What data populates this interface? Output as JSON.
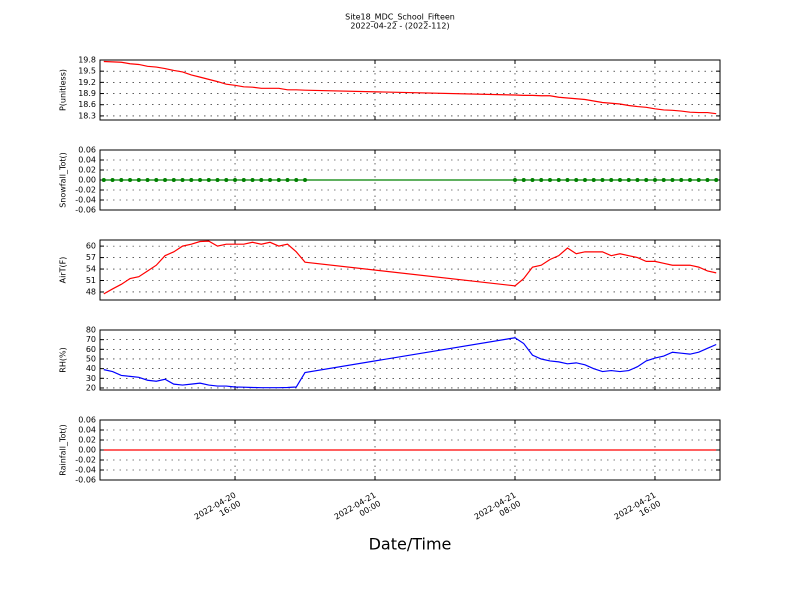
{
  "title": "Site18_MDC_School_Fifteen",
  "subtitle": "2022-04-22 - (2022-112)",
  "xlabel": "Date/Time",
  "chart_data": [
    {
      "type": "line",
      "ylabel": "P(unitless)",
      "color": "#ff0000",
      "markers": false,
      "grid": true,
      "xlim": [
        "2022-04-20 08:17",
        "2022-04-21 19:43"
      ],
      "xticks": [
        "2022-04-20 16:00",
        "2022-04-21 00:00",
        "2022-04-21 08:00",
        "2022-04-21 16:00"
      ],
      "ylim": [
        18.19,
        19.8
      ],
      "yticks": [
        18.3,
        18.6,
        18.9,
        19.2,
        19.5,
        19.8
      ],
      "x": [
        "2022-04-20 08:30",
        "2022-04-20 09:00",
        "2022-04-20 09:30",
        "2022-04-20 10:00",
        "2022-04-20 10:30",
        "2022-04-20 11:00",
        "2022-04-20 11:30",
        "2022-04-20 12:00",
        "2022-04-20 12:30",
        "2022-04-20 13:00",
        "2022-04-20 13:30",
        "2022-04-20 14:00",
        "2022-04-20 14:30",
        "2022-04-20 15:00",
        "2022-04-20 15:30",
        "2022-04-20 16:00",
        "2022-04-20 16:30",
        "2022-04-20 17:00",
        "2022-04-20 17:30",
        "2022-04-20 18:00",
        "2022-04-20 18:30",
        "2022-04-20 19:00",
        "2022-04-20 19:30",
        "2022-04-20 20:00",
        "2022-04-21 08:00",
        "2022-04-21 08:30",
        "2022-04-21 09:00",
        "2022-04-21 09:30",
        "2022-04-21 10:00",
        "2022-04-21 10:30",
        "2022-04-21 11:00",
        "2022-04-21 11:30",
        "2022-04-21 12:00",
        "2022-04-21 12:30",
        "2022-04-21 13:00",
        "2022-04-21 13:30",
        "2022-04-21 14:00",
        "2022-04-21 14:30",
        "2022-04-21 15:00",
        "2022-04-21 15:30",
        "2022-04-21 16:00",
        "2022-04-21 16:30",
        "2022-04-21 17:00",
        "2022-04-21 17:30",
        "2022-04-21 18:00",
        "2022-04-21 18:30",
        "2022-04-21 19:00",
        "2022-04-21 19:30"
      ],
      "values": [
        19.76,
        19.75,
        19.74,
        19.7,
        19.68,
        19.63,
        19.61,
        19.57,
        19.52,
        19.48,
        19.4,
        19.34,
        19.28,
        19.22,
        19.15,
        19.12,
        19.08,
        19.07,
        19.04,
        19.04,
        19.04,
        19.0,
        19.0,
        18.99,
        18.86,
        18.85,
        18.85,
        18.84,
        18.84,
        18.8,
        18.78,
        18.76,
        18.74,
        18.7,
        18.66,
        18.64,
        18.62,
        18.58,
        18.55,
        18.53,
        18.49,
        18.46,
        18.45,
        18.43,
        18.4,
        18.39,
        18.39,
        18.36
      ]
    },
    {
      "type": "line",
      "ylabel": "Snowfall_Tot()",
      "color": "#008000",
      "markers": true,
      "grid": true,
      "xlim": [
        "2022-04-20 08:17",
        "2022-04-21 19:43"
      ],
      "xticks": [
        "2022-04-20 16:00",
        "2022-04-21 00:00",
        "2022-04-21 08:00",
        "2022-04-21 16:00"
      ],
      "ylim": [
        -0.06,
        0.06
      ],
      "yticks": [
        -0.06,
        -0.04,
        -0.02,
        {
          "value": 0,
          "label": "0.00"
        },
        0.02,
        0.04,
        0.06
      ],
      "x": [
        "2022-04-20 08:30",
        "2022-04-20 09:00",
        "2022-04-20 09:30",
        "2022-04-20 10:00",
        "2022-04-20 10:30",
        "2022-04-20 11:00",
        "2022-04-20 11:30",
        "2022-04-20 12:00",
        "2022-04-20 12:30",
        "2022-04-20 13:00",
        "2022-04-20 13:30",
        "2022-04-20 14:00",
        "2022-04-20 14:30",
        "2022-04-20 15:00",
        "2022-04-20 15:30",
        "2022-04-20 16:00",
        "2022-04-20 16:30",
        "2022-04-20 17:00",
        "2022-04-20 17:30",
        "2022-04-20 18:00",
        "2022-04-20 18:30",
        "2022-04-20 19:00",
        "2022-04-20 19:30",
        "2022-04-20 20:00",
        "2022-04-21 08:00",
        "2022-04-21 08:30",
        "2022-04-21 09:00",
        "2022-04-21 09:30",
        "2022-04-21 10:00",
        "2022-04-21 10:30",
        "2022-04-21 11:00",
        "2022-04-21 11:30",
        "2022-04-21 12:00",
        "2022-04-21 12:30",
        "2022-04-21 13:00",
        "2022-04-21 13:30",
        "2022-04-21 14:00",
        "2022-04-21 14:30",
        "2022-04-21 15:00",
        "2022-04-21 15:30",
        "2022-04-21 16:00",
        "2022-04-21 16:30",
        "2022-04-21 17:00",
        "2022-04-21 17:30",
        "2022-04-21 18:00",
        "2022-04-21 18:30",
        "2022-04-21 19:00",
        "2022-04-21 19:30"
      ],
      "values": [
        0,
        0,
        0,
        0,
        0,
        0,
        0,
        0,
        0,
        0,
        0,
        0,
        0,
        0,
        0,
        0,
        0,
        0,
        0,
        0,
        0,
        0,
        0,
        0,
        0,
        0,
        0,
        0,
        0,
        0,
        0,
        0,
        0,
        0,
        0,
        0,
        0,
        0,
        0,
        0,
        0,
        0,
        0,
        0,
        0,
        0,
        0,
        0
      ]
    },
    {
      "type": "line",
      "ylabel": "AirT(F)",
      "color": "#ff0000",
      "markers": false,
      "grid": true,
      "xlim": [
        "2022-04-20 08:17",
        "2022-04-21 19:43"
      ],
      "xticks": [
        "2022-04-20 16:00",
        "2022-04-21 00:00",
        "2022-04-21 08:00",
        "2022-04-21 16:00"
      ],
      "ylim": [
        45.9,
        61.6
      ],
      "yticks": [
        48,
        51,
        54,
        57,
        60
      ],
      "x": [
        "2022-04-20 08:30",
        "2022-04-20 09:00",
        "2022-04-20 09:30",
        "2022-04-20 10:00",
        "2022-04-20 10:30",
        "2022-04-20 11:00",
        "2022-04-20 11:30",
        "2022-04-20 12:00",
        "2022-04-20 12:30",
        "2022-04-20 13:00",
        "2022-04-20 13:30",
        "2022-04-20 14:00",
        "2022-04-20 14:30",
        "2022-04-20 15:00",
        "2022-04-20 15:30",
        "2022-04-20 16:00",
        "2022-04-20 16:30",
        "2022-04-20 17:00",
        "2022-04-20 17:30",
        "2022-04-20 18:00",
        "2022-04-20 18:30",
        "2022-04-20 19:00",
        "2022-04-20 19:30",
        "2022-04-20 20:00",
        "2022-04-21 08:00",
        "2022-04-21 08:30",
        "2022-04-21 09:00",
        "2022-04-21 09:30",
        "2022-04-21 10:00",
        "2022-04-21 10:30",
        "2022-04-21 11:00",
        "2022-04-21 11:30",
        "2022-04-21 12:00",
        "2022-04-21 12:30",
        "2022-04-21 13:00",
        "2022-04-21 13:30",
        "2022-04-21 14:00",
        "2022-04-21 14:30",
        "2022-04-21 15:00",
        "2022-04-21 15:30",
        "2022-04-21 16:00",
        "2022-04-21 16:30",
        "2022-04-21 17:00",
        "2022-04-21 17:30",
        "2022-04-21 18:00",
        "2022-04-21 18:30",
        "2022-04-21 19:00",
        "2022-04-21 19:30"
      ],
      "values": [
        47.5,
        48.8,
        50,
        51.5,
        52,
        53.5,
        55,
        57.5,
        58.5,
        60,
        60.5,
        61.2,
        61.3,
        60,
        60.5,
        60.5,
        60.5,
        61,
        60.5,
        61,
        60,
        60.5,
        58.5,
        55.8,
        49.6,
        51.5,
        54.5,
        55,
        56.5,
        57.5,
        59.5,
        58,
        58.5,
        58.5,
        58.5,
        57.5,
        58,
        57.5,
        57,
        56,
        56,
        55.5,
        55,
        55,
        55,
        54.5,
        53.5,
        53
      ]
    },
    {
      "type": "line",
      "ylabel": "RH(%)",
      "color": "#0000ff",
      "markers": false,
      "grid": true,
      "xlim": [
        "2022-04-20 08:17",
        "2022-04-21 19:43"
      ],
      "xticks": [
        "2022-04-20 16:00",
        "2022-04-21 00:00",
        "2022-04-21 08:00",
        "2022-04-21 16:00"
      ],
      "ylim": [
        17.9,
        80
      ],
      "yticks": [
        20,
        30,
        40,
        50,
        60,
        70,
        80
      ],
      "x": [
        "2022-04-20 08:30",
        "2022-04-20 09:00",
        "2022-04-20 09:30",
        "2022-04-20 10:00",
        "2022-04-20 10:30",
        "2022-04-20 11:00",
        "2022-04-20 11:30",
        "2022-04-20 12:00",
        "2022-04-20 12:30",
        "2022-04-20 13:00",
        "2022-04-20 13:30",
        "2022-04-20 14:00",
        "2022-04-20 14:30",
        "2022-04-20 15:00",
        "2022-04-20 15:30",
        "2022-04-20 16:00",
        "2022-04-20 16:30",
        "2022-04-20 17:00",
        "2022-04-20 17:30",
        "2022-04-20 18:00",
        "2022-04-20 18:30",
        "2022-04-20 19:00",
        "2022-04-20 19:30",
        "2022-04-20 20:00",
        "2022-04-21 08:00",
        "2022-04-21 08:30",
        "2022-04-21 09:00",
        "2022-04-21 09:30",
        "2022-04-21 10:00",
        "2022-04-21 10:30",
        "2022-04-21 11:00",
        "2022-04-21 11:30",
        "2022-04-21 12:00",
        "2022-04-21 12:30",
        "2022-04-21 13:00",
        "2022-04-21 13:30",
        "2022-04-21 14:00",
        "2022-04-21 14:30",
        "2022-04-21 15:00",
        "2022-04-21 15:30",
        "2022-04-21 16:00",
        "2022-04-21 16:30",
        "2022-04-21 17:00",
        "2022-04-21 17:30",
        "2022-04-21 18:00",
        "2022-04-21 18:30",
        "2022-04-21 19:00",
        "2022-04-21 19:30"
      ],
      "values": [
        39,
        37,
        33,
        32,
        31,
        28,
        27,
        29,
        24,
        23,
        24,
        25,
        23,
        22,
        22,
        21,
        20.8,
        20.5,
        20.3,
        20.3,
        20.3,
        20.5,
        21,
        36,
        72,
        66,
        54,
        50,
        48,
        47,
        45,
        46,
        44,
        40,
        37,
        38,
        37,
        38,
        42,
        48,
        51,
        53,
        57,
        56,
        55,
        57,
        61,
        65
      ]
    },
    {
      "type": "line",
      "ylabel": "Rainfall_Tot()",
      "color": "#ff0000",
      "markers": false,
      "grid": true,
      "xlim": [
        "2022-04-20 08:17",
        "2022-04-21 19:43"
      ],
      "xticks": [
        "2022-04-20 16:00",
        "2022-04-21 00:00",
        "2022-04-21 08:00",
        "2022-04-21 16:00"
      ],
      "ylim": [
        -0.06,
        0.06
      ],
      "yticks": [
        -0.06,
        -0.04,
        -0.02,
        {
          "value": 0,
          "label": "0.00"
        },
        0.02,
        0.04,
        0.06
      ],
      "x": [
        "2022-04-20 08:30",
        "2022-04-20 09:00",
        "2022-04-20 09:30",
        "2022-04-20 10:00",
        "2022-04-20 10:30",
        "2022-04-20 11:00",
        "2022-04-20 11:30",
        "2022-04-20 12:00",
        "2022-04-20 12:30",
        "2022-04-20 13:00",
        "2022-04-20 13:30",
        "2022-04-20 14:00",
        "2022-04-20 14:30",
        "2022-04-20 15:00",
        "2022-04-20 15:30",
        "2022-04-20 16:00",
        "2022-04-20 16:30",
        "2022-04-20 17:00",
        "2022-04-20 17:30",
        "2022-04-20 18:00",
        "2022-04-20 18:30",
        "2022-04-20 19:00",
        "2022-04-20 19:30",
        "2022-04-20 20:00",
        "2022-04-21 08:00",
        "2022-04-21 08:30",
        "2022-04-21 09:00",
        "2022-04-21 09:30",
        "2022-04-21 10:00",
        "2022-04-21 10:30",
        "2022-04-21 11:00",
        "2022-04-21 11:30",
        "2022-04-21 12:00",
        "2022-04-21 12:30",
        "2022-04-21 13:00",
        "2022-04-21 13:30",
        "2022-04-21 14:00",
        "2022-04-21 14:30",
        "2022-04-21 15:00",
        "2022-04-21 15:30",
        "2022-04-21 16:00",
        "2022-04-21 16:30",
        "2022-04-21 17:00",
        "2022-04-21 17:30",
        "2022-04-21 18:00",
        "2022-04-21 18:30",
        "2022-04-21 19:00",
        "2022-04-21 19:30"
      ],
      "values": [
        0,
        0,
        0,
        0,
        0,
        0,
        0,
        0,
        0,
        0,
        0,
        0,
        0,
        0,
        0,
        0,
        0,
        0,
        0,
        0,
        0,
        0,
        0,
        0,
        0,
        0,
        0,
        0,
        0,
        0,
        0,
        0,
        0,
        0,
        0,
        0,
        0,
        0,
        0,
        0,
        0,
        0,
        0,
        0,
        0,
        0,
        0,
        0
      ]
    }
  ]
}
